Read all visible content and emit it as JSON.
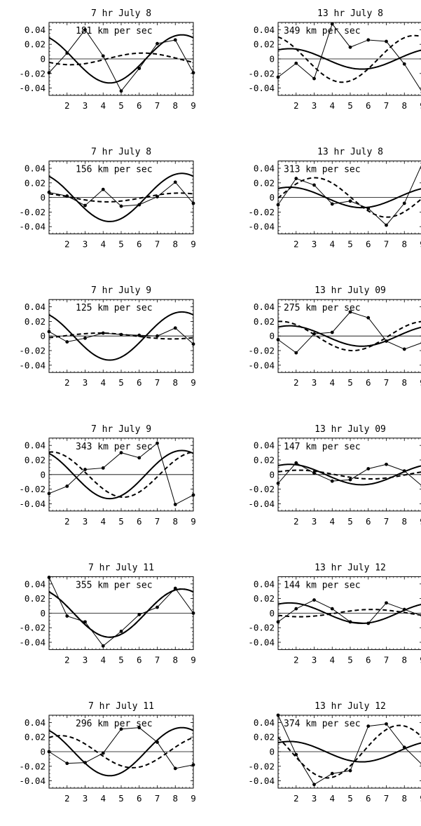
{
  "figure": {
    "xticks": [
      2,
      3,
      4,
      5,
      6,
      7,
      8,
      9
    ],
    "yticks": [
      "0.04",
      "0.02",
      "0",
      "-0.02",
      "-0.04"
    ]
  },
  "chart_data": [
    {
      "type": "line",
      "title": "7 hr July 8",
      "annotation": "181 km per sec",
      "xlim": [
        1,
        9
      ],
      "ylim": [
        -0.05,
        0.05
      ],
      "reference": {
        "a": 0.033,
        "phi": 0.5
      },
      "fit": {
        "a": 0.008,
        "phi": 2.2
      },
      "observed": {
        "x": [
          1,
          2,
          3,
          4,
          5,
          6,
          7,
          8,
          9
        ],
        "y": [
          -0.019,
          0.008,
          0.04,
          0.004,
          -0.044,
          -0.013,
          0.021,
          0.026,
          -0.019
        ]
      }
    },
    {
      "type": "line",
      "title": "13 hr July 8",
      "annotation": "349 km per sec",
      "xlim": [
        1,
        9
      ],
      "ylim": [
        -0.05,
        0.05
      ],
      "reference": {
        "a": 0.014,
        "phi": -0.5
      },
      "fit": {
        "a": 0.032,
        "phi": 0.35
      },
      "observed": {
        "x": [
          1,
          2,
          3,
          4,
          5,
          6,
          7,
          8,
          9
        ],
        "y": [
          -0.025,
          -0.006,
          -0.027,
          0.048,
          0.016,
          0.026,
          0.024,
          -0.007,
          -0.046
        ]
      }
    },
    {
      "type": "line",
      "title": "7 hr July 8",
      "annotation": "156 km per sec",
      "xlim": [
        1,
        9
      ],
      "ylim": [
        -0.05,
        0.05
      ],
      "reference": {
        "a": 0.033,
        "phi": 0.5
      },
      "fit": {
        "a": 0.006,
        "phi": 0.6
      },
      "observed": {
        "x": [
          1,
          2,
          3,
          4,
          5,
          6,
          7,
          8,
          9
        ],
        "y": [
          0.007,
          0.002,
          -0.011,
          0.011,
          -0.012,
          -0.01,
          0.001,
          0.021,
          -0.008
        ]
      }
    },
    {
      "type": "line",
      "title": "13 hr July 8",
      "annotation": "313 km per sec",
      "xlim": [
        1,
        9
      ],
      "ylim": [
        -0.05,
        0.05
      ],
      "reference": {
        "a": 0.014,
        "phi": -0.5
      },
      "fit": {
        "a": 0.027,
        "phi": -1.6
      },
      "observed": {
        "x": [
          1,
          2,
          3,
          4,
          5,
          6,
          7,
          8,
          9
        ],
        "y": [
          -0.01,
          0.026,
          0.017,
          -0.009,
          -0.005,
          -0.015,
          -0.038,
          -0.008,
          0.047
        ]
      }
    },
    {
      "type": "line",
      "title": "7 hr July 9",
      "annotation": "125 km per sec",
      "xlim": [
        1,
        9
      ],
      "ylim": [
        -0.05,
        0.05
      ],
      "reference": {
        "a": 0.033,
        "phi": 0.5
      },
      "fit": {
        "a": 0.004,
        "phi": -2.2
      },
      "observed": {
        "x": [
          1,
          2,
          3,
          4,
          5,
          6,
          7,
          8,
          9
        ],
        "y": [
          0.006,
          -0.008,
          -0.003,
          0.004,
          0.002,
          0.001,
          0.0,
          0.011,
          -0.011
        ]
      }
    },
    {
      "type": "line",
      "title": "13 hr July 09",
      "annotation": "275 km per sec",
      "xlim": [
        1,
        9
      ],
      "ylim": [
        -0.05,
        0.05
      ],
      "reference": {
        "a": 0.014,
        "phi": -0.5
      },
      "fit": {
        "a": 0.02,
        "phi": -0.1
      },
      "observed": {
        "x": [
          1,
          2,
          3,
          4,
          5,
          6,
          7,
          8,
          9
        ],
        "y": [
          -0.005,
          -0.023,
          0.003,
          0.005,
          0.033,
          0.025,
          -0.007,
          -0.018,
          -0.009
        ]
      }
    },
    {
      "type": "line",
      "title": "7 hr July 9",
      "annotation": "343 km per sec",
      "xlim": [
        1,
        9
      ],
      "ylim": [
        -0.05,
        0.05
      ],
      "reference": {
        "a": 0.033,
        "phi": 0.5
      },
      "fit": {
        "a": 0.031,
        "phi": -0.1
      },
      "observed": {
        "x": [
          1,
          2,
          3,
          4,
          5,
          6,
          7,
          8,
          9
        ],
        "y": [
          -0.026,
          -0.016,
          0.007,
          0.009,
          0.03,
          0.023,
          0.043,
          -0.041,
          -0.028
        ]
      }
    },
    {
      "type": "line",
      "title": "13 hr July 09",
      "annotation": "147 km per sec",
      "xlim": [
        1,
        9
      ],
      "ylim": [
        -0.05,
        0.05
      ],
      "reference": {
        "a": 0.014,
        "phi": -0.5
      },
      "fit": {
        "a": 0.006,
        "phi": -0.9
      },
      "observed": {
        "x": [
          1,
          2,
          3,
          4,
          5,
          6,
          7,
          8,
          9
        ],
        "y": [
          -0.012,
          0.016,
          0.002,
          -0.009,
          -0.007,
          0.008,
          0.014,
          0.005,
          -0.016
        ]
      }
    },
    {
      "type": "line",
      "title": "7 hr July 11",
      "annotation": "355 km per sec",
      "xlim": [
        1,
        9
      ],
      "ylim": [
        -0.05,
        0.05
      ],
      "reference": {
        "a": 0.033,
        "phi": 0.5
      },
      "fit": {
        "a": 0.033,
        "phi": 0.5
      },
      "observed": {
        "x": [
          1,
          2,
          3,
          4,
          5,
          6,
          7,
          8,
          9
        ],
        "y": [
          0.049,
          -0.004,
          -0.012,
          -0.045,
          -0.025,
          -0.002,
          0.008,
          0.034,
          0.0
        ]
      }
    },
    {
      "type": "line",
      "title": "13 hr July 12",
      "annotation": "144 km per sec",
      "xlim": [
        1,
        9
      ],
      "ylim": [
        -0.05,
        0.05
      ],
      "reference": {
        "a": 0.014,
        "phi": -0.5
      },
      "fit": {
        "a": 0.005,
        "phi": 2.2
      },
      "observed": {
        "x": [
          1,
          2,
          3,
          4,
          5,
          6,
          7,
          8,
          9
        ],
        "y": [
          -0.012,
          0.006,
          0.018,
          0.006,
          -0.012,
          -0.014,
          0.014,
          0.005,
          -0.004
        ]
      }
    },
    {
      "type": "line",
      "title": "7 hr July 11",
      "annotation": "296 km per sec",
      "xlim": [
        1,
        9
      ],
      "ylim": [
        -0.05,
        0.05
      ],
      "reference": {
        "a": 0.033,
        "phi": 0.5
      },
      "fit": {
        "a": 0.022,
        "phi": -0.5
      },
      "observed": {
        "x": [
          1,
          2,
          3,
          4,
          5,
          6,
          7,
          8,
          9
        ],
        "y": [
          0.0,
          -0.016,
          -0.015,
          -0.002,
          0.031,
          0.033,
          0.013,
          -0.023,
          -0.018
        ]
      }
    },
    {
      "type": "line",
      "title": "13 hr July 12",
      "annotation": "374 km per sec",
      "xlim": [
        1,
        9
      ],
      "ylim": [
        -0.05,
        0.05
      ],
      "reference": {
        "a": 0.014,
        "phi": -0.5
      },
      "fit": {
        "a": 0.036,
        "phi": 1.0
      },
      "observed": {
        "x": [
          1,
          2,
          3,
          4,
          5,
          6,
          7,
          8,
          9
        ],
        "y": [
          0.05,
          -0.004,
          -0.045,
          -0.03,
          -0.026,
          0.035,
          0.038,
          0.006,
          -0.018
        ]
      }
    }
  ]
}
